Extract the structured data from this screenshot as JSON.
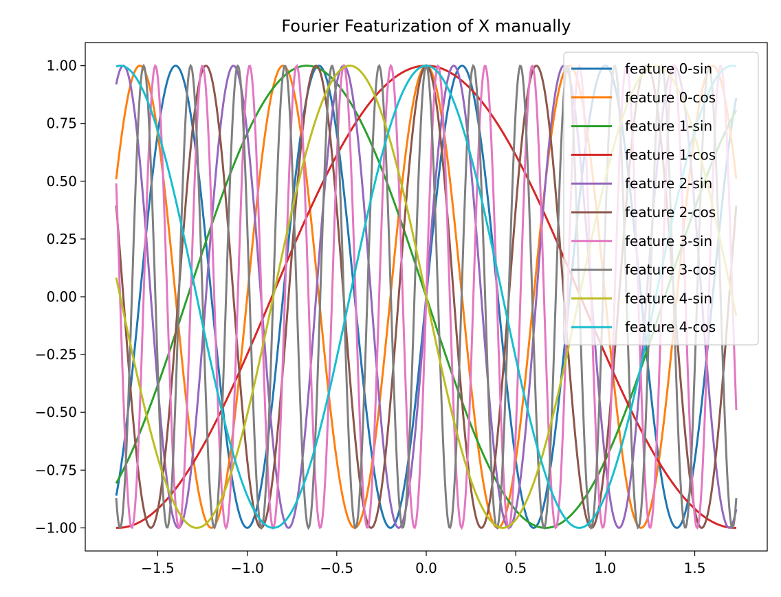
{
  "chart_data": {
    "type": "line",
    "title": "Fourier Featurization of X manually",
    "xlabel": "",
    "ylabel": "",
    "x_range": [
      -1.732,
      1.732
    ],
    "xlim": [
      -1.905,
      1.905
    ],
    "ylim": [
      -1.1,
      1.1
    ],
    "x_ticks": [
      -1.5,
      -1.0,
      -0.5,
      0.0,
      0.5,
      1.0,
      1.5
    ],
    "x_tick_labels": [
      "−1.5",
      "−1.0",
      "−0.5",
      "0.0",
      "0.5",
      "1.0",
      "1.5"
    ],
    "y_ticks": [
      1.0,
      0.75,
      0.5,
      0.25,
      0.0,
      -0.25,
      -0.5,
      -0.75,
      -1.0
    ],
    "y_tick_labels": [
      "1.00",
      "0.75",
      "0.50",
      "0.25",
      "0.00",
      "−0.25",
      "−0.50",
      "−0.75",
      "−1.00"
    ],
    "grid": false,
    "legend_position": "top-right",
    "series": [
      {
        "name": "feature 0-sin",
        "func": "sin",
        "freq": 2.5,
        "color": "#1f77b4"
      },
      {
        "name": "feature 0-cos",
        "func": "cos",
        "freq": 2.5,
        "color": "#ff7f0e"
      },
      {
        "name": "feature 1-sin",
        "func": "sin",
        "freq": -0.75,
        "color": "#2ca02c"
      },
      {
        "name": "feature 1-cos",
        "func": "cos",
        "freq": 0.58,
        "color": "#d62728"
      },
      {
        "name": "feature 2-sin",
        "func": "sin",
        "freq": 3.25,
        "color": "#9467bd"
      },
      {
        "name": "feature 2-cos",
        "func": "cos",
        "freq": 3.25,
        "color": "#8c564b"
      },
      {
        "name": "feature 3-sin",
        "func": "sin",
        "freq": 7.6,
        "color": "#e377c2"
      },
      {
        "name": "feature 3-cos",
        "func": "cos",
        "freq": 7.6,
        "color": "#7f7f7f"
      },
      {
        "name": "feature 4-sin",
        "func": "sin",
        "freq": -1.17,
        "color": "#bcbd22"
      },
      {
        "name": "feature 4-cos",
        "func": "cos",
        "freq": 1.17,
        "color": "#17becf"
      }
    ]
  }
}
